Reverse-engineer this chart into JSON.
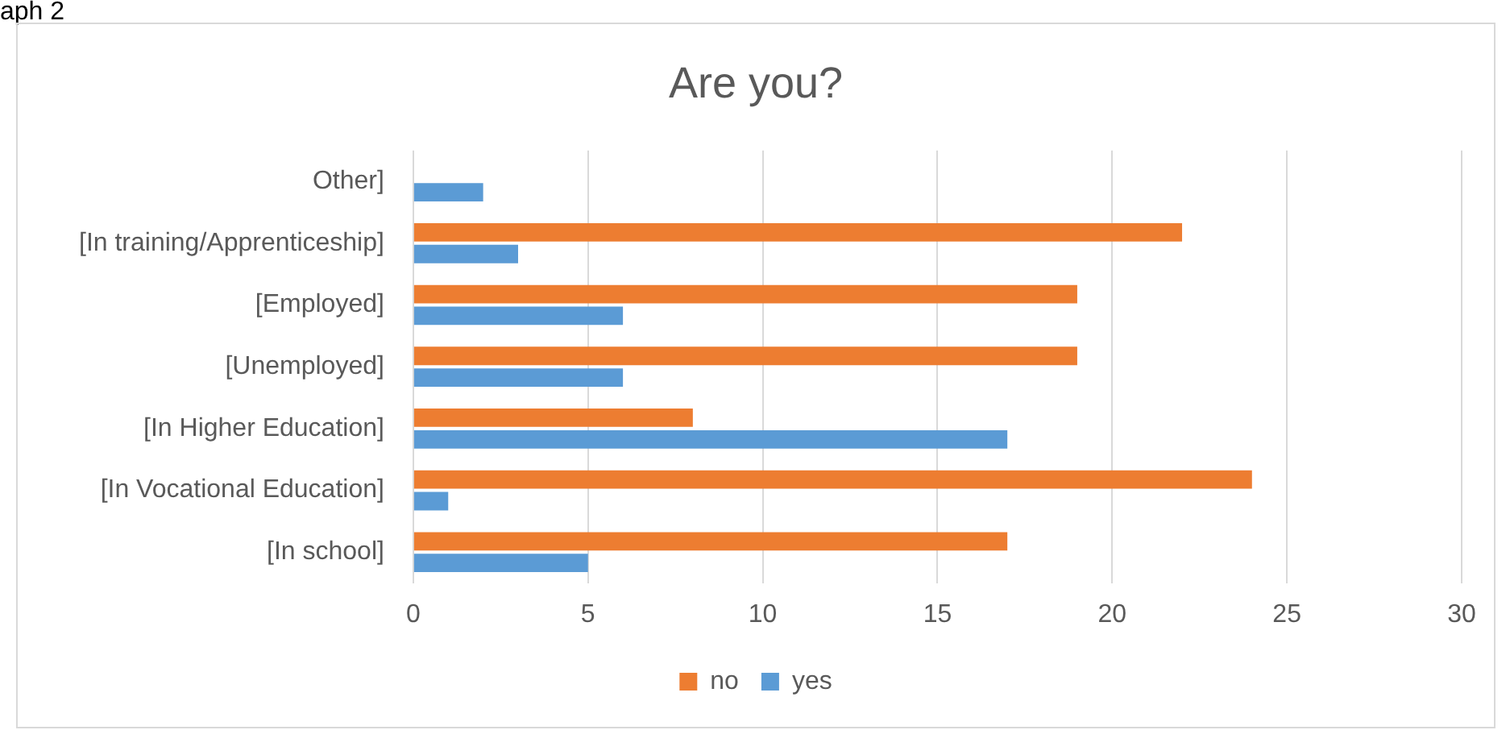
{
  "chart_data": {
    "type": "bar",
    "orientation": "horizontal",
    "title": "Are you?",
    "annotations": [
      "aph 2"
    ],
    "categories": [
      "Other]",
      "[In training/Apprenticeship]",
      "[Employed]",
      "[Unemployed]",
      "[In Higher Education]",
      "[In Vocational Education]",
      "[In school]"
    ],
    "series": [
      {
        "name": "no",
        "color": "#ed7d31",
        "values": [
          null,
          22,
          19,
          19,
          8,
          24,
          17
        ]
      },
      {
        "name": "yes",
        "color": "#5b9bd5",
        "values": [
          2,
          3,
          6,
          6,
          17,
          1,
          5
        ]
      }
    ],
    "xlim": [
      0,
      30
    ],
    "xticks": [
      0,
      5,
      10,
      15,
      20,
      25,
      30
    ],
    "grid": "x",
    "legend": "bottom"
  }
}
